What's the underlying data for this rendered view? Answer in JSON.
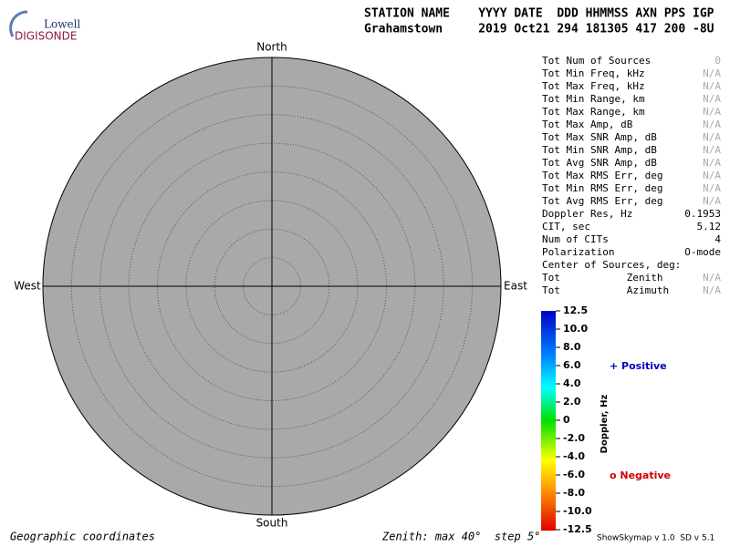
{
  "logo": {
    "top": "Lowell",
    "bottom": "DIGISONDE"
  },
  "header": {
    "fields": "STATION NAME    YYYY DATE  DDD HHMMSS AXN PPS IGP",
    "values": "Grahamstown     2019 Oct21 294 181305 417 200 -8U"
  },
  "compass": {
    "north": "North",
    "south": "South",
    "east": "East",
    "west": "West"
  },
  "stats": [
    [
      "Tot Num of Sources",
      "0"
    ],
    [
      "Tot Min Freq, kHz",
      "N/A"
    ],
    [
      "Tot Max Freq, kHz",
      "N/A"
    ],
    [
      "Tot Min Range, km",
      "N/A"
    ],
    [
      "Tot Max Range, km",
      "N/A"
    ],
    [
      "Tot Max Amp, dB",
      "N/A"
    ],
    [
      "Tot Max SNR Amp, dB",
      "N/A"
    ],
    [
      "Tot Min SNR Amp, dB",
      "N/A"
    ],
    [
      "Tot Avg SNR Amp, dB",
      "N/A"
    ],
    [
      "Tot Max RMS Err, deg",
      "N/A"
    ],
    [
      "Tot Min RMS Err, deg",
      "N/A"
    ],
    [
      "Tot Avg RMS Err, deg",
      "N/A"
    ],
    [
      "Doppler Res, Hz",
      "0.1953"
    ],
    [
      "CIT, sec",
      "5.12"
    ],
    [
      "Num of CITs",
      "4"
    ],
    [
      "Polarization",
      "O-mode"
    ],
    [
      "Center of Sources, deg:"
    ],
    [
      "Tot           Zenith",
      "N/A"
    ],
    [
      "Tot           Azimuth",
      "N/A"
    ]
  ],
  "colorbar": {
    "ticks": [
      "12.5",
      "10.0",
      "8.0",
      "6.0",
      "4.0",
      "2.0",
      "0",
      "-2.0",
      "-4.0",
      "-6.0",
      "-8.0",
      "-10.0",
      "-12.5"
    ],
    "label": "Doppler, Hz",
    "positive": "+ Positive",
    "negative": "o Negative"
  },
  "footer": {
    "left": "Geographic coordinates",
    "middle": "Zenith: max 40°  step 5°",
    "right": "ShowSkymap v 1.0  SD v 5.1"
  }
}
